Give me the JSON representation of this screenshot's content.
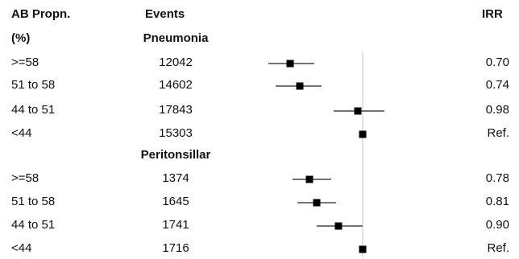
{
  "headers": {
    "col1_line1": "AB Propn.",
    "col1_line2": "(%)",
    "events": "Events",
    "irr": "IRR"
  },
  "chart_data": {
    "type": "forest",
    "reference_line": 1.0,
    "groups": [
      {
        "name": "Pneumonia",
        "rows": [
          {
            "label": ">=58",
            "events": "12042",
            "irr_text": "0.70",
            "irr": 0.7,
            "ci": [
              0.61,
              0.8
            ]
          },
          {
            "label": "51 to 58",
            "events": "14602",
            "irr_text": "0.74",
            "irr": 0.74,
            "ci": [
              0.64,
              0.83
            ]
          },
          {
            "label": "44 to 51",
            "events": "17843",
            "irr_text": "0.98",
            "irr": 0.98,
            "ci": [
              0.88,
              1.09
            ]
          },
          {
            "label": "<44",
            "events": "15303",
            "irr_text": "Ref.",
            "irr": 1.0,
            "ci": null
          }
        ]
      },
      {
        "name": "Peritonsillar",
        "rows": [
          {
            "label": ">=58",
            "events": "1374",
            "irr_text": "0.78",
            "irr": 0.78,
            "ci": [
              0.71,
              0.87
            ]
          },
          {
            "label": "51 to 58",
            "events": "1645",
            "irr_text": "0.81",
            "irr": 0.81,
            "ci": [
              0.73,
              0.89
            ]
          },
          {
            "label": "44 to 51",
            "events": "1741",
            "irr_text": "0.90",
            "irr": 0.9,
            "ci": [
              0.81,
              1.0
            ]
          },
          {
            "label": "<44",
            "events": "1716",
            "irr_text": "Ref.",
            "irr": 1.0,
            "ci": null
          }
        ]
      }
    ]
  }
}
